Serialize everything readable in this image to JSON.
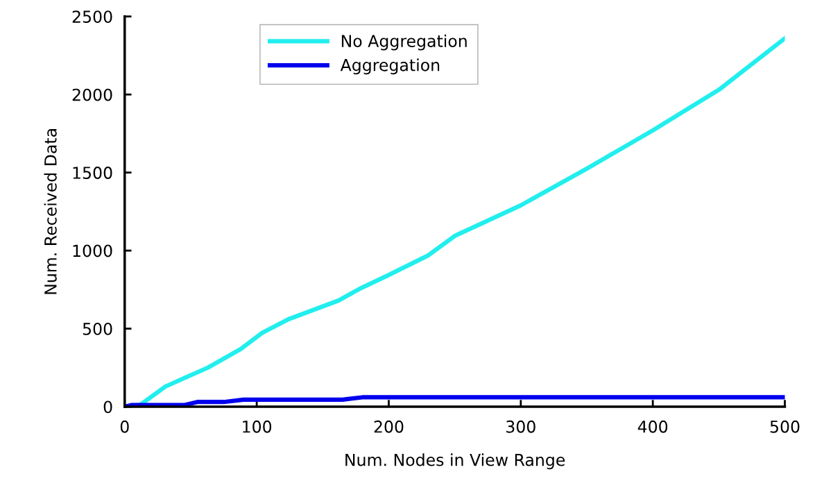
{
  "chart_data": {
    "type": "line",
    "xlabel": "Num. Nodes in View Range",
    "ylabel": "Num. Received Data",
    "xlim": [
      0,
      500
    ],
    "xticks": [
      0,
      100,
      200,
      300,
      400,
      500
    ],
    "ylim": [
      0,
      2500
    ],
    "yticks": [
      0,
      500,
      1000,
      1500,
      2000,
      2500
    ],
    "grid": false,
    "legend": "top",
    "marker": "none",
    "line_style": "solid",
    "series": [
      {
        "name": "No Aggregation",
        "color": "#22eeee",
        "x": [
          0,
          12,
          31,
          39,
          63,
          88,
          104,
          124,
          162,
          179,
          199,
          230,
          250,
          300,
          350,
          400,
          450,
          500
        ],
        "values": [
          0,
          13,
          130,
          160,
          250,
          370,
          472,
          560,
          680,
          760,
          840,
          970,
          1094,
          1290,
          1525,
          1770,
          2030,
          2360
        ]
      },
      {
        "name": "Aggregation",
        "color": "#0000ee",
        "x": [
          0,
          5,
          45,
          55,
          75,
          90,
          165,
          180,
          500
        ],
        "values": [
          0,
          10,
          10,
          30,
          30,
          45,
          45,
          60,
          60
        ]
      }
    ]
  }
}
